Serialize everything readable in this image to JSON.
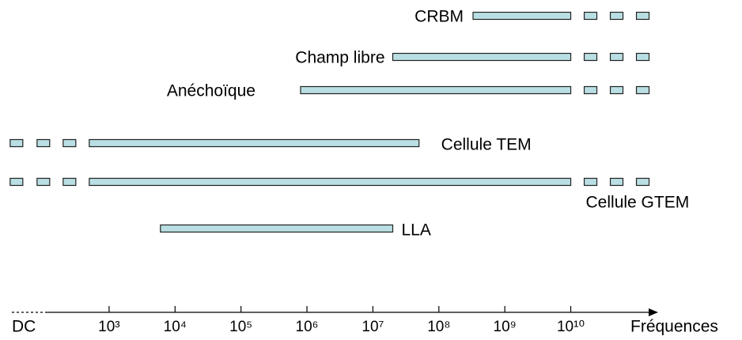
{
  "chart_data": {
    "type": "range",
    "x_label": "Fréquences",
    "x_origin_label": "DC",
    "log_x": true,
    "color": "#b9dfe4",
    "xlim": [
      110,
      200000000000
    ],
    "xticks": [
      {
        "value": 1000,
        "label": "10³"
      },
      {
        "value": 10000,
        "label": "10⁴"
      },
      {
        "value": 100000,
        "label": "10⁵"
      },
      {
        "value": 1000000,
        "label": "10⁶"
      },
      {
        "value": 10000000,
        "label": "10⁷"
      },
      {
        "value": 100000000,
        "label": "10⁸"
      },
      {
        "value": 1000000000,
        "label": "10⁹"
      },
      {
        "value": 10000000000,
        "label": "10¹⁰"
      }
    ],
    "series": [
      {
        "name": "CRBM",
        "start": 330000000,
        "end": 10000000000,
        "extends_low": false,
        "extends_high": true
      },
      {
        "name": "Champ libre",
        "start": 20000000,
        "end": 10000000000,
        "extends_low": false,
        "extends_high": true
      },
      {
        "name": "Anéchoïque",
        "start": 800000,
        "end": 10000000000,
        "extends_low": false,
        "extends_high": true
      },
      {
        "name": "Cellule TEM",
        "start": 500,
        "end": 50000000,
        "extends_low": true,
        "extends_high": false
      },
      {
        "name": "Cellule GTEM",
        "start": 500,
        "end": 10000000000,
        "extends_low": true,
        "extends_high": true
      },
      {
        "name": "LLA",
        "start": 6000,
        "end": 20000000,
        "extends_low": false,
        "extends_high": false
      }
    ]
  }
}
